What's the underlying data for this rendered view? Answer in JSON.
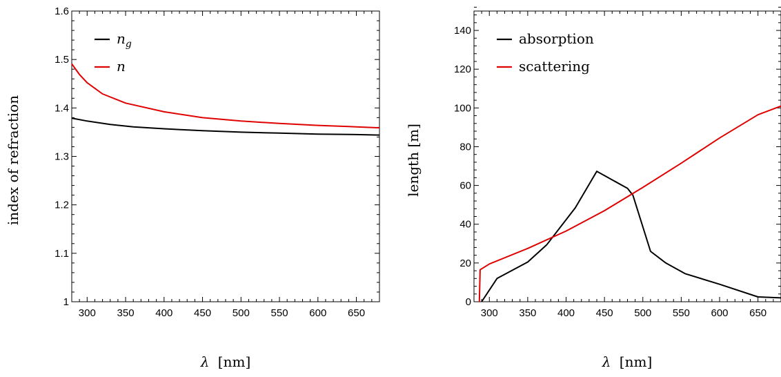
{
  "chart_data": [
    {
      "type": "line",
      "xlabel_main": "λ",
      "xlabel_unit": "[nm]",
      "ylabel": "index of refraction",
      "xlim": [
        280,
        680
      ],
      "ylim": [
        1.0,
        1.6
      ],
      "xticks": [
        300,
        350,
        400,
        450,
        500,
        550,
        600,
        650
      ],
      "yticks": [
        1,
        1.1,
        1.2,
        1.3,
        1.4,
        1.5,
        1.6
      ],
      "ytick_labels": [
        "1",
        "1.1",
        "1.2",
        "1.3",
        "1.4",
        "1.5",
        "1.6"
      ],
      "legend_position": "top-left",
      "series": [
        {
          "name": "n",
          "name_sub": "g",
          "color": "#000000",
          "x": [
            280,
            300,
            330,
            360,
            400,
            450,
            500,
            550,
            600,
            650,
            680
          ],
          "y": [
            1.379,
            1.373,
            1.366,
            1.361,
            1.357,
            1.353,
            1.35,
            1.348,
            1.346,
            1.345,
            1.344
          ]
        },
        {
          "name": "n",
          "name_sub": "",
          "color": "#e00000",
          "x": [
            280,
            290,
            300,
            320,
            350,
            400,
            450,
            500,
            550,
            600,
            650,
            680
          ],
          "y": [
            1.491,
            1.469,
            1.452,
            1.429,
            1.41,
            1.392,
            1.38,
            1.373,
            1.368,
            1.364,
            1.361,
            1.359
          ]
        }
      ]
    },
    {
      "type": "line",
      "xlabel_main": "λ",
      "xlabel_unit": "[nm]",
      "ylabel": "length [m]",
      "xlim": [
        280,
        680
      ],
      "ylim": [
        0,
        150
      ],
      "xticks": [
        300,
        350,
        400,
        450,
        500,
        550,
        600,
        650
      ],
      "yticks": [
        0,
        20,
        40,
        60,
        80,
        100,
        120,
        140
      ],
      "ytick_labels": [
        "0",
        "20",
        "40",
        "60",
        "80",
        "100",
        "120",
        "140"
      ],
      "legend_position": "top-left",
      "series": [
        {
          "name": "absorption",
          "color": "#000000",
          "x": [
            290,
            310,
            350,
            375,
            412,
            440,
            480,
            487,
            510,
            530,
            555,
            600,
            650,
            680
          ],
          "y": [
            0,
            12,
            20.5,
            29.5,
            48.5,
            67.3,
            58.5,
            55,
            26,
            20,
            14.5,
            9,
            2.5,
            2
          ]
        },
        {
          "name": "scattering",
          "color": "#e00000",
          "x": [
            287,
            288,
            300,
            350,
            400,
            450,
            500,
            550,
            600,
            650,
            680
          ],
          "y": [
            0,
            16.5,
            19.5,
            27.5,
            36.5,
            47,
            59,
            71.5,
            84.5,
            96.5,
            101
          ]
        }
      ]
    }
  ]
}
